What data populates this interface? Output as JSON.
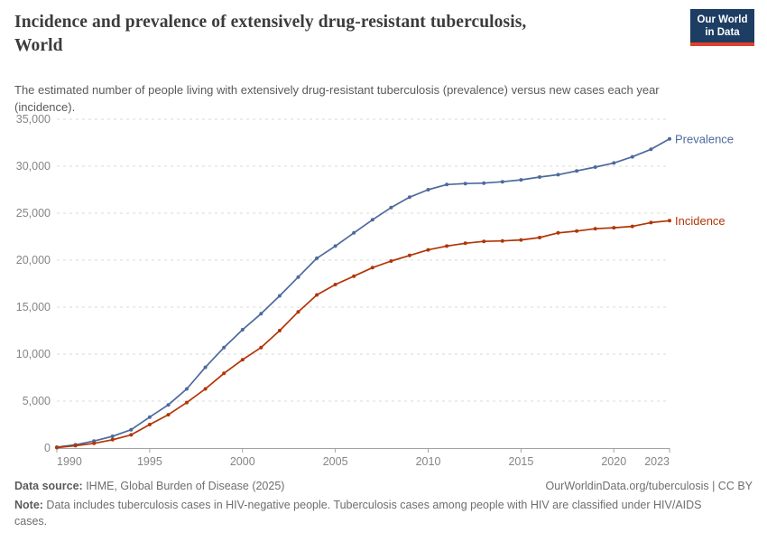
{
  "header": {
    "title": "Incidence and prevalence of extensively drug-resistant tuberculosis,\nWorld",
    "subtitle": "The estimated number of people living with extensively drug-resistant tuberculosis (prevalence) versus new cases each year\n(incidence)."
  },
  "logo": {
    "line1": "Our World",
    "line2": "in Data",
    "bg_color": "#1d3d63",
    "bar_color": "#e0402b"
  },
  "chart_data": {
    "type": "line",
    "title": "Incidence and prevalence of extensively drug-resistant tuberculosis, World",
    "xlabel": "",
    "ylabel": "",
    "xlim": [
      1990,
      2023
    ],
    "ylim": [
      0,
      35000
    ],
    "xticks": [
      1990,
      1995,
      2000,
      2005,
      2010,
      2015,
      2020,
      2023
    ],
    "yticks": [
      0,
      5000,
      10000,
      15000,
      20000,
      25000,
      30000,
      35000
    ],
    "grid": "dashed-horizontal",
    "legend_position": "end-of-line-labels",
    "years": [
      1990,
      1991,
      1992,
      1993,
      1994,
      1995,
      1996,
      1997,
      1998,
      1999,
      2000,
      2001,
      2002,
      2003,
      2004,
      2005,
      2006,
      2007,
      2008,
      2009,
      2010,
      2011,
      2012,
      2013,
      2014,
      2015,
      2016,
      2017,
      2018,
      2019,
      2020,
      2021,
      2022,
      2023
    ],
    "series": [
      {
        "name": "Prevalence",
        "color": "#4c6a9c",
        "values": [
          100,
          350,
          750,
          1250,
          1950,
          3300,
          4600,
          6300,
          8600,
          10700,
          12600,
          14300,
          16200,
          18200,
          20200,
          21500,
          22900,
          24300,
          25600,
          26700,
          27500,
          28050,
          28150,
          28200,
          28350,
          28550,
          28850,
          29100,
          29500,
          29900,
          30350,
          31000,
          31800,
          32900
        ]
      },
      {
        "name": "Incidence",
        "color": "#b13507",
        "values": [
          50,
          250,
          500,
          880,
          1400,
          2500,
          3550,
          4850,
          6300,
          7950,
          9400,
          10700,
          12500,
          14500,
          16300,
          17400,
          18300,
          19200,
          19900,
          20500,
          21100,
          21500,
          21800,
          22000,
          22050,
          22150,
          22400,
          22900,
          23100,
          23350,
          23450,
          23600,
          24000,
          24200
        ]
      }
    ]
  },
  "footer": {
    "data_source_label": "Data source:",
    "data_source_value": " IHME, Global Burden of Disease (2025)",
    "link": "OurWorldinData.org/tuberculosis | CC BY",
    "note_label": "Note:",
    "note_value": " Data includes tuberculosis cases in HIV-negative people. Tuberculosis cases among people with HIV are classified under HIV/AIDS\ncases."
  }
}
